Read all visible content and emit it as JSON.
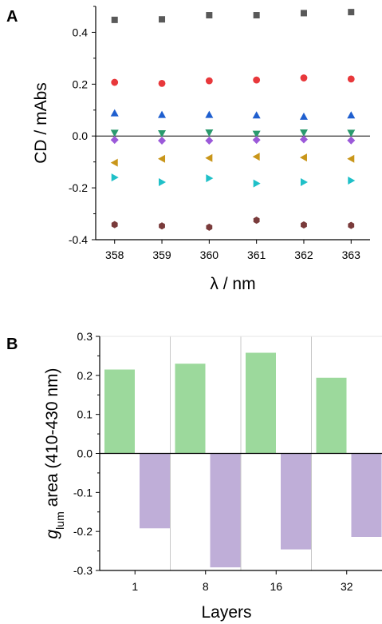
{
  "chart_data": [
    {
      "panel": "A",
      "type": "scatter",
      "xlabel": "λ / nm",
      "ylabel": "CD / mAbs",
      "xlim": [
        357.6,
        363.4
      ],
      "ylim": [
        -0.4,
        0.5
      ],
      "x": [
        358,
        359,
        360,
        361,
        362,
        363
      ],
      "xticks": [
        "358",
        "359",
        "360",
        "361",
        "362",
        "363"
      ],
      "yticks": [
        {
          "value": 0.4,
          "label": "0.4"
        },
        {
          "value": 0.2,
          "label": "0.2"
        },
        {
          "value": 0.0,
          "label": "0.0"
        },
        {
          "value": -0.2,
          "label": "-0.2"
        },
        {
          "value": -0.4,
          "label": "-0.4"
        }
      ],
      "zero_line": true,
      "grid": false,
      "series": [
        {
          "marker": "square",
          "color": "#595959",
          "values": [
            0.448,
            0.45,
            0.466,
            0.466,
            0.474,
            0.478
          ]
        },
        {
          "marker": "circle",
          "color": "#e8383b",
          "values": [
            0.207,
            0.203,
            0.213,
            0.216,
            0.224,
            0.22
          ]
        },
        {
          "marker": "triangle-up",
          "color": "#1f5fcf",
          "values": [
            0.088,
            0.082,
            0.082,
            0.08,
            0.075,
            0.08
          ]
        },
        {
          "marker": "triangle-down",
          "color": "#2a9a6e",
          "values": [
            0.012,
            0.01,
            0.013,
            0.008,
            0.013,
            0.012
          ]
        },
        {
          "marker": "diamond",
          "color": "#9b59d9",
          "values": [
            -0.015,
            -0.018,
            -0.018,
            -0.015,
            -0.013,
            -0.017
          ]
        },
        {
          "marker": "triangle-left",
          "color": "#c9961a",
          "values": [
            -0.103,
            -0.088,
            -0.085,
            -0.08,
            -0.083,
            -0.088
          ]
        },
        {
          "marker": "triangle-right",
          "color": "#1fc0c8",
          "values": [
            -0.16,
            -0.178,
            -0.163,
            -0.183,
            -0.178,
            -0.172
          ]
        },
        {
          "marker": "hexagon",
          "color": "#7a3b3b",
          "values": [
            -0.342,
            -0.347,
            -0.352,
            -0.325,
            -0.343,
            -0.345
          ]
        }
      ]
    },
    {
      "panel": "B",
      "type": "bar",
      "xlabel": "Layers",
      "ylabel_main": "g",
      "ylabel_sub": "lum",
      "ylabel_rest": " area (410-430 nm)",
      "ylim": [
        -0.3,
        0.3
      ],
      "categories": [
        "1",
        "8",
        "16",
        "32"
      ],
      "yticks": [
        {
          "value": 0.3,
          "label": "0.3"
        },
        {
          "value": 0.2,
          "label": "0.2"
        },
        {
          "value": 0.1,
          "label": "0.1"
        },
        {
          "value": 0.0,
          "label": "0.0"
        },
        {
          "value": -0.1,
          "label": "-0.1"
        },
        {
          "value": -0.2,
          "label": "-0.2"
        },
        {
          "value": -0.3,
          "label": "-0.3"
        }
      ],
      "grid": "vertical-separators",
      "series": [
        {
          "color": "#9cd99c",
          "values": [
            0.215,
            0.23,
            0.258,
            0.194
          ]
        },
        {
          "color": "#bfaed8",
          "values": [
            -0.192,
            -0.292,
            -0.246,
            -0.214
          ]
        }
      ]
    }
  ],
  "panel_labels": {
    "a": "A",
    "b": "B"
  }
}
